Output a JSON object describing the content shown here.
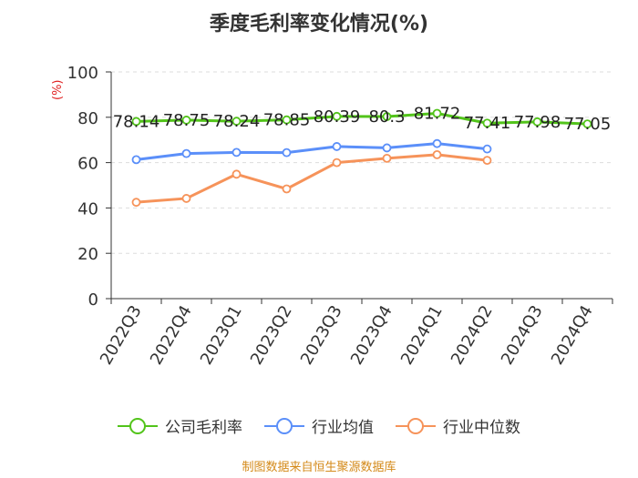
{
  "chart_data": {
    "type": "line",
    "title": "季度毛利率变化情况(%)",
    "ylabel": "(%)",
    "xlabel": "",
    "ylim": [
      0,
      100
    ],
    "yticks": [
      0,
      20,
      40,
      60,
      80,
      100
    ],
    "grid": true,
    "legend_position": "bottom",
    "categories": [
      "2022Q3",
      "2022Q4",
      "2023Q1",
      "2023Q2",
      "2023Q3",
      "2023Q4",
      "2024Q1",
      "2024Q2",
      "2024Q3",
      "2024Q4"
    ],
    "series": [
      {
        "name": "公司毛利率",
        "color": "#52c41a",
        "values": [
          78.14,
          78.75,
          78.24,
          78.85,
          80.39,
          80.3,
          81.72,
          77.41,
          77.98,
          77.05
        ],
        "labels": [
          "78.14",
          "78.75",
          "78.24",
          "78.85",
          "80.39",
          "80.3",
          "81.72",
          "77.41",
          "77.98",
          "77.05"
        ]
      },
      {
        "name": "行业均值",
        "color": "#5b8ff9",
        "values": [
          61.3,
          64.0,
          64.5,
          64.4,
          67.1,
          66.5,
          68.4,
          66.0,
          null,
          null
        ]
      },
      {
        "name": "行业中位数",
        "color": "#f6935a",
        "values": [
          42.5,
          44.2,
          54.9,
          48.4,
          60.0,
          61.9,
          63.5,
          61.0,
          null,
          null
        ]
      }
    ]
  },
  "source": "制图数据来自恒生聚源数据库"
}
